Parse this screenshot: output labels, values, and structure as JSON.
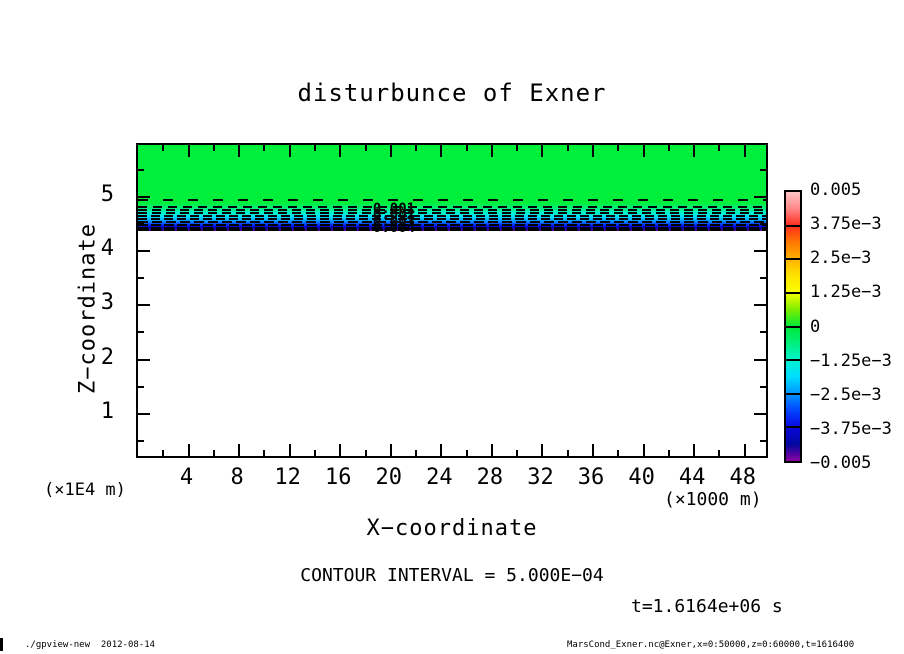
{
  "page": {
    "background": "#ffffff",
    "footer_left": "./gpview-new  2012-08-14",
    "footer_right": "MarsCond_Exner.nc@Exner,x=0:50000,z=0:60000,t=1616400"
  },
  "chart_data": {
    "type": "heatmap",
    "subtype": "filled-contour",
    "title": "disturbunce of Exner",
    "xlabel": "X−coordinate",
    "x_unit": "(×1000 m)",
    "ylabel": "Z−coordinate",
    "y_unit": "(×1E4 m)",
    "xlim": [
      0,
      50
    ],
    "ylim": [
      0,
      6
    ],
    "x_major_ticks": [
      4,
      8,
      12,
      16,
      20,
      24,
      28,
      32,
      36,
      40,
      44,
      48
    ],
    "x_minor_ticks": [
      2,
      6,
      10,
      14,
      18,
      22,
      26,
      30,
      34,
      38,
      42,
      46
    ],
    "y_major_ticks": [
      5,
      4,
      3,
      2,
      1
    ],
    "y_minor_ticks": [
      5.5,
      4.5,
      3.5,
      2.5,
      1.5,
      0.5
    ],
    "grid": false,
    "contour_interval_text": "CONTOUR INTERVAL = 5.000E−04",
    "time_label": "t=1.6164e+06 s",
    "contour_labels": [
      "0.001",
      "0.002",
      "0.003",
      "0.004"
    ],
    "field": {
      "description": "Exner function disturbance: value ~0 (green) everywhere above z~4.8e4 m; thin strongly negative layer (0 down to -0.005, dashed negative contours) between z~4.8e4 and z~4.45e4 m; white (zero/blank) below the layer",
      "zero_color": "#00ef3a",
      "layer_top_z": 4.8,
      "layer_bottom_z": 4.45,
      "layer_min_value": -0.005,
      "negative_contour_line_count": 10
    },
    "colorbar": {
      "position": "right",
      "labels": [
        "0.005",
        "3.75e−3",
        "2.5e−3",
        "1.25e−3",
        "0",
        "−1.25e−3",
        "−2.5e−3",
        "−3.75e−3",
        "−0.005"
      ],
      "values": [
        0.005,
        0.00375,
        0.0025,
        0.00125,
        0,
        -0.00125,
        -0.0025,
        -0.00375,
        -0.005
      ],
      "gradient_top_to_bottom": [
        "#ffc4c4",
        "#ff8787",
        "#ff2d1e",
        "#ff7800",
        "#ffb300",
        "#ffe400",
        "#f8ff00",
        "#7ded00",
        "#00e838",
        "#00f07c",
        "#00f3cf",
        "#00ddff",
        "#0096ff",
        "#0045ff",
        "#0a06dd",
        "#00089e",
        "#8b00a0"
      ],
      "segment_count": 8
    }
  }
}
